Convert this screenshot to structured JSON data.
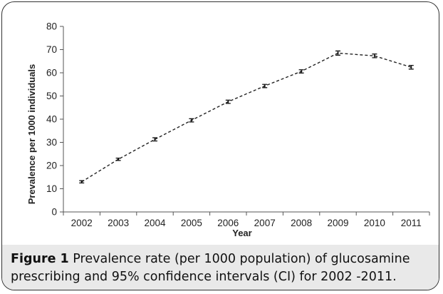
{
  "chart_data": {
    "type": "line",
    "xlabel": "Year",
    "ylabel": "Prevalence per 1000 individuals",
    "ylim": [
      0,
      80
    ],
    "yticks": [
      0,
      10,
      20,
      30,
      40,
      50,
      60,
      70,
      80
    ],
    "categories": [
      "2002",
      "2003",
      "2004",
      "2005",
      "2006",
      "2007",
      "2008",
      "2009",
      "2010",
      "2011"
    ],
    "series": [
      {
        "values": [
          13.0,
          22.7,
          31.3,
          39.5,
          47.5,
          54.3,
          60.6,
          68.5,
          67.3,
          62.4
        ],
        "ci_low": [
          12.5,
          22.2,
          30.6,
          38.8,
          46.8,
          53.6,
          59.9,
          67.6,
          66.5,
          61.6
        ],
        "ci_high": [
          13.5,
          23.2,
          32.0,
          40.2,
          48.2,
          55.0,
          61.3,
          69.4,
          68.1,
          63.2
        ],
        "line_style": "dashed",
        "color": "#222222"
      }
    ],
    "grid": false,
    "legend": "none"
  },
  "caption": {
    "label": "Figure 1",
    "text": "Prevalence rate (per 1000 population) of glucosamine prescribing and 95% confidence intervals (CI) for 2002 -2011."
  }
}
